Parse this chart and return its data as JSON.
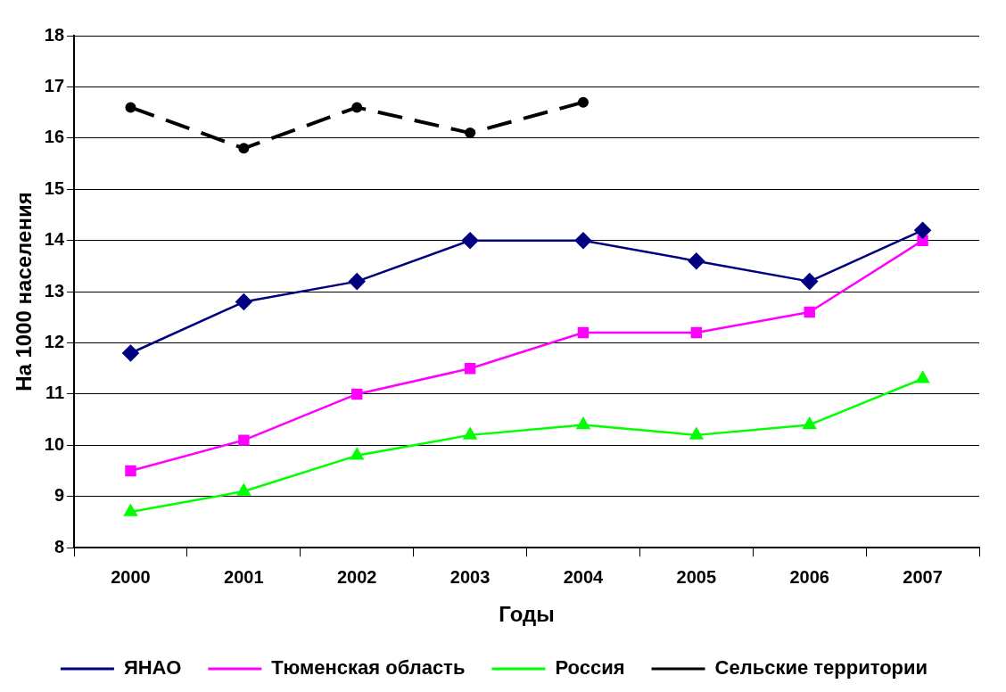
{
  "chart_data": {
    "type": "line",
    "xlabel": "Годы",
    "ylabel": "На 1000 населения",
    "categories": [
      "2000",
      "2001",
      "2002",
      "2003",
      "2004",
      "2005",
      "2006",
      "2007"
    ],
    "series": [
      {
        "name": "ЯНАО",
        "color": "#000080",
        "marker": "diamond",
        "line_style": "solid",
        "values": [
          11.8,
          12.8,
          13.2,
          14.0,
          14.0,
          13.6,
          13.2,
          14.2
        ]
      },
      {
        "name": "Тюменская область",
        "color": "#ff00ff",
        "marker": "square",
        "line_style": "solid",
        "values": [
          9.5,
          10.1,
          11.0,
          11.5,
          12.2,
          12.2,
          12.6,
          14.0
        ]
      },
      {
        "name": "Россия",
        "color": "#00ff00",
        "marker": "triangle",
        "line_style": "solid",
        "values": [
          8.7,
          9.1,
          9.8,
          10.2,
          10.4,
          10.2,
          10.4,
          11.3
        ]
      },
      {
        "name": "Сельские территории",
        "color": "#000000",
        "marker": "circle",
        "line_style": "dashed",
        "values": [
          16.6,
          15.8,
          16.6,
          16.1,
          16.7,
          null,
          null,
          null
        ]
      }
    ],
    "ylim": [
      8,
      18
    ],
    "yticks": [
      8,
      9,
      10,
      11,
      12,
      13,
      14,
      15,
      16,
      17,
      18
    ],
    "grid": "y",
    "legend": "bottom"
  }
}
